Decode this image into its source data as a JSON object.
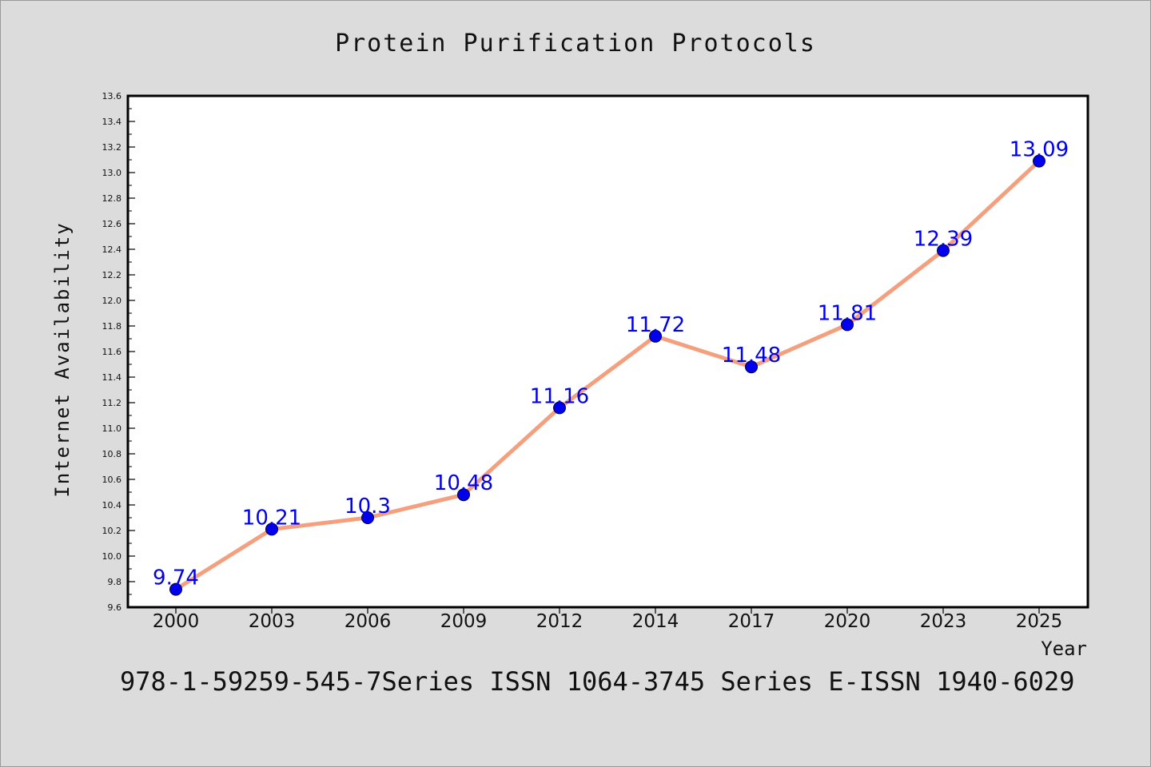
{
  "chart_data": {
    "type": "line",
    "title": "Protein Purification Protocols",
    "xlabel": "Year",
    "ylabel": "Internet Availability",
    "categories": [
      "2000",
      "2003",
      "2006",
      "2009",
      "2012",
      "2014",
      "2017",
      "2020",
      "2023",
      "2025"
    ],
    "series": [
      {
        "values": [
          9.74,
          10.21,
          10.3,
          10.48,
          11.16,
          11.72,
          11.48,
          11.81,
          12.39,
          13.09
        ],
        "data_labels": [
          "9.74",
          "10.21",
          "10.3",
          "10.48",
          "11.16",
          "11.72",
          "11.48",
          "11.81",
          "12.39",
          "13.09"
        ]
      }
    ],
    "ylim": [
      9.6,
      13.6
    ],
    "yticks": [
      "9.6",
      "9.8",
      "10.0",
      "10.2",
      "10.4",
      "10.6",
      "10.8",
      "11.0",
      "11.2",
      "11.4",
      "11.6",
      "11.8",
      "12.0",
      "12.2",
      "12.4",
      "12.6",
      "12.8",
      "13.0",
      "13.2",
      "13.4",
      "13.6"
    ],
    "grid": false,
    "legend": "none",
    "line_color": "#f4a07f",
    "marker_color": "#0000ee",
    "label_color": "#0000ee"
  },
  "footer": {
    "text": "978-1-59259-545-7Series ISSN 1064-3745 Series E-ISSN 1940-6029"
  }
}
